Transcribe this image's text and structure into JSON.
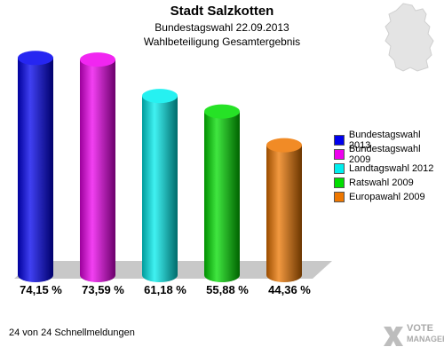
{
  "header": {
    "title": "Stadt Salzkotten",
    "subtitle": "Bundestagswahl 22.09.2013",
    "subtitle2": "Wahlbeteiligung Gesamtergebnis"
  },
  "footer": {
    "status": "24 von 24 Schnellmeldungen"
  },
  "branding": {
    "line1": "VOTE",
    "line2": "MANAGER",
    "icon": "vote-manager-x-icon"
  },
  "map_icon": "germany-map-icon",
  "chart_data": {
    "type": "bar",
    "style": "3d-cylinder",
    "categories": [
      "Bundestagswahl 2013",
      "Bundestagswahl 2009",
      "Landtagswahl 2012",
      "Ratswahl 2009",
      "Europawahl 2009"
    ],
    "values": [
      74.15,
      73.59,
      61.18,
      55.88,
      44.36
    ],
    "value_labels": [
      "74,15 %",
      "73,59 %",
      "61,18 %",
      "55,88 %",
      "44,36 %"
    ],
    "colors": [
      "#0000ee",
      "#ee00ee",
      "#00eeee",
      "#00dd00",
      "#ee7700"
    ],
    "legend": {
      "placement": "right",
      "entries": [
        "Bundestagswahl 2013",
        "Bundestagswahl 2009",
        "Landtagswahl 2012",
        "Ratswahl 2009",
        "Europawahl 2009"
      ]
    },
    "ylim": [
      0,
      100
    ],
    "grid": false
  }
}
